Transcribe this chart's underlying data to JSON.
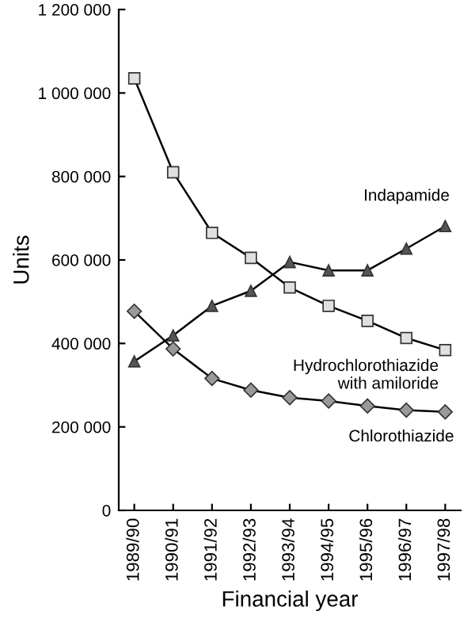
{
  "chart_data": {
    "type": "line",
    "xlabel": "Financial year",
    "ylabel": "Units",
    "categories": [
      "1989/90",
      "1990/91",
      "1991/92",
      "1992/93",
      "1993/94",
      "1994/95",
      "1995/96",
      "1996/97",
      "1997/98"
    ],
    "series": [
      {
        "name": "Hydrochlorothiazide\nwith amiloride",
        "color": "#e0e0e0",
        "marker": "square",
        "values": [
          1035000,
          810000,
          665000,
          605000,
          534000,
          490000,
          454000,
          413000,
          384000
        ]
      },
      {
        "name": "Indapamide",
        "color": "#555555",
        "marker": "triangle",
        "values": [
          357000,
          419000,
          490000,
          526000,
          595000,
          575000,
          575000,
          627000,
          681000
        ]
      },
      {
        "name": "Chlorothiazide",
        "color": "#999999",
        "marker": "diamond",
        "values": [
          477000,
          387000,
          316000,
          288000,
          270000,
          262000,
          250000,
          240000,
          236000
        ]
      }
    ],
    "ylim": [
      0,
      1200000
    ],
    "yticks": [
      0,
      {
        "value": 200000,
        "label": "200 000"
      },
      {
        "value": 400000,
        "label": "400 000"
      },
      {
        "value": 600000,
        "label": "600 000"
      },
      {
        "value": 800000,
        "label": "800 000"
      },
      {
        "value": 1000000,
        "label": "1 000 000"
      },
      {
        "value": 1200000,
        "label": "1 200 000"
      }
    ],
    "grid": false,
    "legend": false,
    "line_style": "solid"
  }
}
